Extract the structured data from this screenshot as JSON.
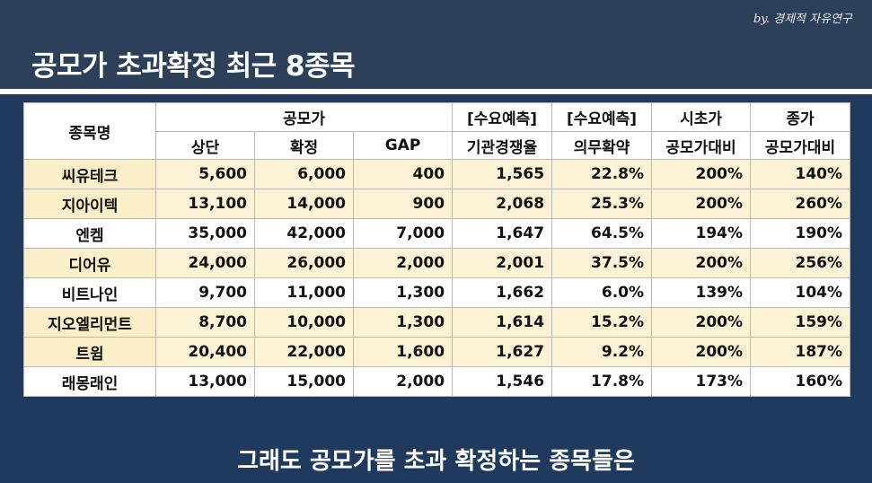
{
  "header": {
    "signature": "by. 경제적 자유연구",
    "title": "공모가 초과확정 최근 8종목"
  },
  "table": {
    "header_row1": {
      "name": "종목명",
      "price_group": "공모가",
      "demand_rate": "[수요예측]",
      "lockup": "[수요예측]",
      "open_price": "시초가",
      "close_price": "종가"
    },
    "header_row2": {
      "upper": "상단",
      "confirmed": "확정",
      "gap": "GAP",
      "demand_rate": "기관경쟁율",
      "lockup": "의무확약",
      "open_price": "공모가대비",
      "close_price": "공모가대비"
    },
    "rows": [
      {
        "name": "씨유테크",
        "upper": "5,600",
        "confirmed": "6,000",
        "gap": "400",
        "rate": "1,565",
        "lockup": "22.8%",
        "open": "200%",
        "close": "140%",
        "highlight": true
      },
      {
        "name": "지아이텍",
        "upper": "13,100",
        "confirmed": "14,000",
        "gap": "900",
        "rate": "2,068",
        "lockup": "25.3%",
        "open": "200%",
        "close": "260%",
        "highlight": true
      },
      {
        "name": "엔켐",
        "upper": "35,000",
        "confirmed": "42,000",
        "gap": "7,000",
        "rate": "1,647",
        "lockup": "64.5%",
        "open": "194%",
        "close": "190%",
        "highlight": false
      },
      {
        "name": "디어유",
        "upper": "24,000",
        "confirmed": "26,000",
        "gap": "2,000",
        "rate": "2,001",
        "lockup": "37.5%",
        "open": "200%",
        "close": "256%",
        "highlight": true
      },
      {
        "name": "비트나인",
        "upper": "9,700",
        "confirmed": "11,000",
        "gap": "1,300",
        "rate": "1,662",
        "lockup": "6.0%",
        "open": "139%",
        "close": "104%",
        "highlight": false
      },
      {
        "name": "지오엘리먼트",
        "upper": "8,700",
        "confirmed": "10,000",
        "gap": "1,300",
        "rate": "1,614",
        "lockup": "15.2%",
        "open": "200%",
        "close": "159%",
        "highlight": true
      },
      {
        "name": "트윔",
        "upper": "20,400",
        "confirmed": "22,000",
        "gap": "1,600",
        "rate": "1,627",
        "lockup": "9.2%",
        "open": "200%",
        "close": "187%",
        "highlight": true
      },
      {
        "name": "래몽래인",
        "upper": "13,000",
        "confirmed": "15,000",
        "gap": "2,000",
        "rate": "1,546",
        "lockup": "17.8%",
        "open": "173%",
        "close": "160%",
        "highlight": false
      }
    ]
  },
  "subtitle": "그래도 공모가를 초과 확정하는 종목들은",
  "colors": {
    "top_background": "#2c4059",
    "bottom_background": "#1f3a5c",
    "highlight_row": "#fcf3d6"
  }
}
